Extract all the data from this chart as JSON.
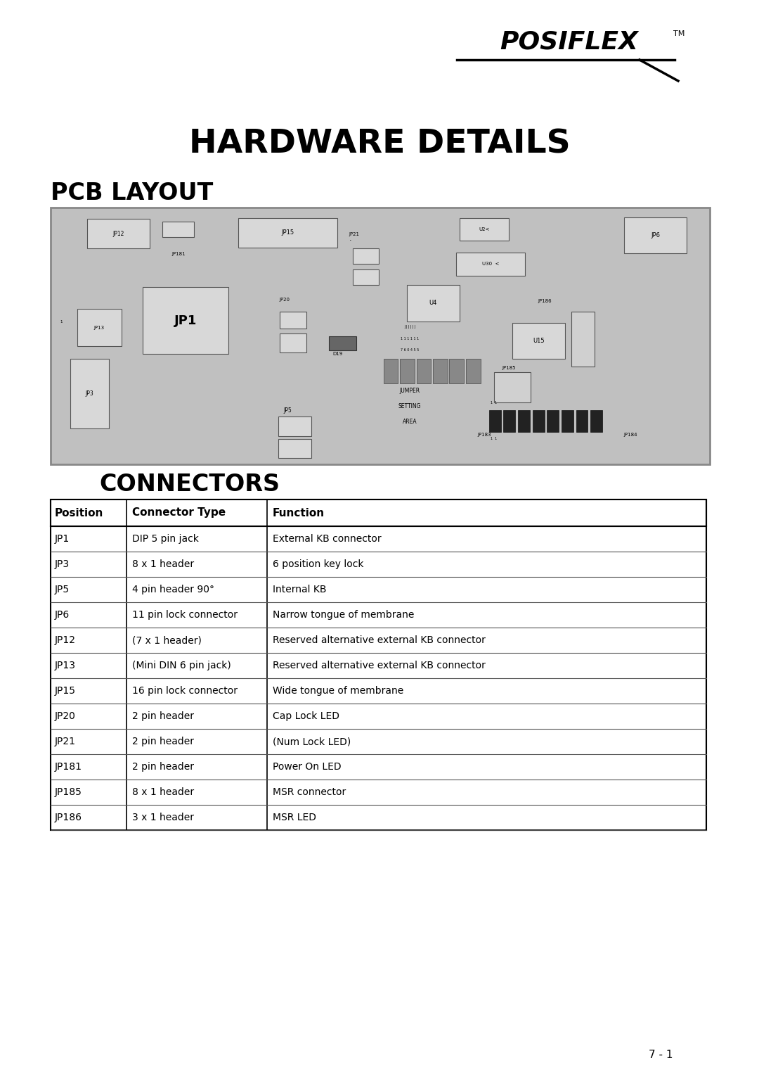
{
  "title_hardware": "HARDWARE DETAILS",
  "title_pcb": "PCB LAYOUT",
  "title_connectors": "CONNECTORS",
  "page_number": "7 - 1",
  "bg_color": "#ffffff",
  "table_headers": [
    "Position",
    "Connector Type",
    "Function"
  ],
  "table_rows": [
    [
      "JP1",
      "DIP 5 pin jack",
      "External KB connector"
    ],
    [
      "JP3",
      "8 x 1 header",
      "6 position key lock"
    ],
    [
      "JP5",
      "4 pin header 90°",
      "Internal KB"
    ],
    [
      "JP6",
      "11 pin lock connector",
      "Narrow tongue of membrane"
    ],
    [
      "JP12",
      "(7 x 1 header)",
      "Reserved alternative external KB connector"
    ],
    [
      "JP13",
      "(Mini DIN 6 pin jack)",
      "Reserved alternative external KB connector"
    ],
    [
      "JP15",
      "16 pin lock connector",
      "Wide tongue of membrane"
    ],
    [
      "JP20",
      "2 pin header",
      "Cap Lock LED"
    ],
    [
      "JP21",
      "2 pin header",
      "(Num Lock LED)"
    ],
    [
      "JP181",
      "2 pin header",
      "Power On LED"
    ],
    [
      "JP185",
      "8 x 1 header",
      "MSR connector"
    ],
    [
      "JP186",
      "3 x 1 header",
      "MSR LED"
    ]
  ],
  "logo_text": "POSIFLEX",
  "logo_tm": "TM",
  "pcb_bg": "#c0c0c0",
  "pcb_border": "#888888",
  "comp_face": "#e0e0e0",
  "comp_edge": "#444444"
}
